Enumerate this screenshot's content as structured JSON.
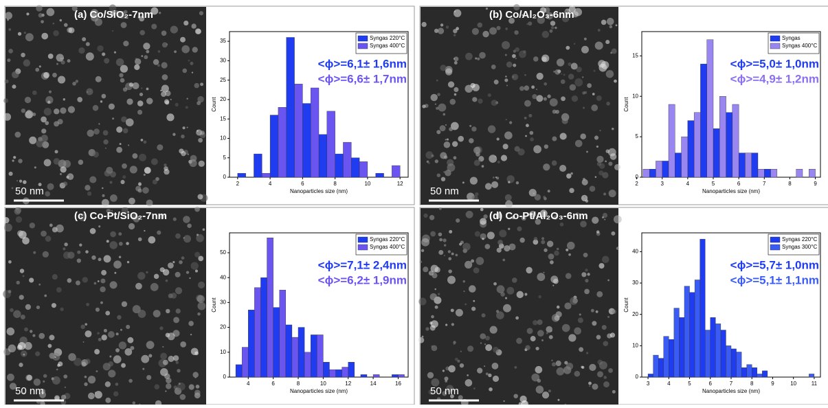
{
  "chart_data": [
    {
      "type": "bar",
      "title": "(a)  Co/SiO₂-7nm",
      "image_label": "50 nm",
      "xlabel": "Nanoparticles size (nm)",
      "ylabel": "Count",
      "xlim": [
        1.5,
        12.5
      ],
      "xticks": [
        2,
        4,
        6,
        8,
        10,
        12
      ],
      "ylim": [
        0,
        37.5
      ],
      "yticks": [
        0,
        5,
        10,
        15,
        20,
        25,
        30,
        35
      ],
      "legend": "upper right",
      "series": [
        {
          "name": "Syngas 220°C",
          "color": "#1f3cf0",
          "x": [
            2.25,
            3.25,
            4.25,
            5.25,
            6.25,
            7.25,
            8.25,
            9.25,
            10.75
          ],
          "values": [
            1,
            6,
            16,
            36,
            19,
            11,
            6,
            5,
            1
          ]
        },
        {
          "name": "Syngas 400°C",
          "color": "#6b55f0",
          "x": [
            3.75,
            4.75,
            5.75,
            6.75,
            7.75,
            8.75,
            9.75,
            11.75
          ],
          "values": [
            1,
            18,
            24,
            23,
            17,
            9,
            4,
            3
          ]
        }
      ],
      "annotations": [
        {
          "text": "<ϕ>=6,1± 1,6nm",
          "color": "#1f3cf0"
        },
        {
          "text": "<ϕ>=6,6± 1,7nm",
          "color": "#6b55f0"
        }
      ]
    },
    {
      "type": "bar",
      "title": "(b)  Co/Al₂O₃-6nm",
      "image_label": "50 nm",
      "xlabel": "Nanoparticles size (nm)",
      "ylabel": "Count",
      "xlim": [
        2.2,
        9.2
      ],
      "xticks": [
        2,
        3,
        4,
        5,
        6,
        7,
        8,
        9
      ],
      "ylim": [
        0,
        18
      ],
      "yticks": [
        0,
        5,
        10,
        15
      ],
      "legend": "upper right",
      "series": [
        {
          "name": "Syngas",
          "color": "#1f3cf0",
          "x": [
            2.625,
            3.125,
            3.625,
            4.125,
            4.625,
            5.125,
            5.625,
            6.125,
            6.625,
            7.125
          ],
          "values": [
            1,
            2,
            3,
            7,
            14,
            6,
            8,
            3,
            3,
            1
          ]
        },
        {
          "name": "Syngas 400°C",
          "color": "#9a86f0",
          "x": [
            2.375,
            2.875,
            3.375,
            3.875,
            4.375,
            4.875,
            5.375,
            5.875,
            6.375,
            6.875,
            7.375,
            8.375,
            8.875
          ],
          "values": [
            1,
            2,
            9,
            5,
            8,
            17,
            10,
            9,
            3,
            1,
            1,
            1,
            1
          ]
        }
      ],
      "annotations": [
        {
          "text": "<ϕ>=5,0± 1,0nm",
          "color": "#1f3cf0"
        },
        {
          "text": "<ϕ>=4,9± 1,2nm",
          "color": "#8a70ee"
        }
      ]
    },
    {
      "type": "bar",
      "title": "(c)  Co-Pt/SiO₂-7nm",
      "image_label": "50 nm",
      "xlabel": "Nanoparticles size (nm)",
      "ylabel": "Count",
      "xlim": [
        2.5,
        16.8
      ],
      "xticks": [
        4,
        6,
        8,
        10,
        12,
        14,
        16
      ],
      "ylim": [
        0,
        58
      ],
      "yticks": [
        0,
        10,
        20,
        30,
        40,
        50
      ],
      "legend": "upper right",
      "series": [
        {
          "name": "Syngas 220°C",
          "color": "#1f3cf0",
          "x": [
            3.25,
            4.25,
            5.25,
            6.25,
            7.25,
            8.25,
            9.25,
            10.25,
            11.25,
            12.25,
            13.25,
            15.75
          ],
          "values": [
            5,
            27,
            40,
            28,
            21,
            20,
            17,
            6,
            3,
            6,
            1,
            1
          ]
        },
        {
          "name": "Syngas 400°C",
          "color": "#6b55f0",
          "x": [
            3.75,
            4.75,
            5.75,
            6.75,
            7.75,
            8.75,
            9.75,
            10.75,
            11.75,
            14.25,
            16.25
          ],
          "values": [
            12,
            36,
            56,
            35,
            16,
            10,
            17,
            3,
            4,
            1,
            1
          ]
        }
      ],
      "annotations": [
        {
          "text": "<ϕ>=7,1± 2,4nm",
          "color": "#1f3cf0"
        },
        {
          "text": "<ϕ>=6,2± 1,9nm",
          "color": "#6b55f0"
        }
      ]
    },
    {
      "type": "bar",
      "title": "(d)  Co-Pt/Al₂O₃-6nm",
      "image_label": "50 nm",
      "xlabel": "Nanoparticles size (nm)",
      "ylabel": "Count",
      "xlim": [
        2.7,
        11.3
      ],
      "xticks": [
        3,
        4,
        5,
        6,
        7,
        8,
        9,
        10,
        11
      ],
      "ylim": [
        0,
        46
      ],
      "yticks": [
        0,
        10,
        20,
        30,
        40
      ],
      "legend": "upper right",
      "series": [
        {
          "name": "Syngas 220°C",
          "color": "#1f3cf0",
          "x": [
            3.125,
            3.625,
            4.125,
            4.625,
            5.125,
            5.625,
            6.125,
            6.625,
            7.125,
            7.625,
            8.125,
            8.625
          ],
          "values": [
            1,
            6,
            12,
            19,
            27,
            44,
            19,
            15,
            9,
            3,
            3,
            2
          ]
        },
        {
          "name": "Syngas 300°C",
          "color": "#3a5cf5",
          "x": [
            3.375,
            3.875,
            4.375,
            4.875,
            5.375,
            5.875,
            6.375,
            6.875,
            7.375,
            7.875,
            8.375,
            10.875
          ],
          "values": [
            7,
            13,
            22,
            29,
            31,
            15,
            17,
            10,
            8,
            4,
            1,
            1
          ]
        }
      ],
      "annotations": [
        {
          "text": "<ϕ>=5,7± 1,0nm",
          "color": "#1f3cf0"
        },
        {
          "text": "<ϕ>=5,1± 1,1nm",
          "color": "#3a5cf5"
        }
      ]
    }
  ]
}
